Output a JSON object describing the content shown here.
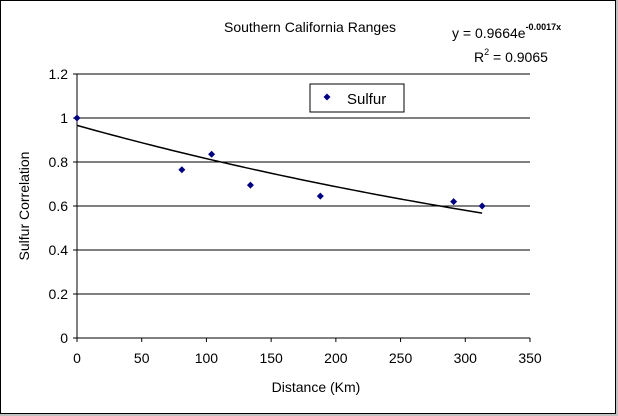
{
  "chart_data": {
    "type": "scatter",
    "title": "Southern California Ranges",
    "xlabel": "Distance (Km)",
    "ylabel": "Sulfur Correlation",
    "xlim": [
      0,
      350
    ],
    "ylim": [
      0,
      1.2
    ],
    "x_ticks": [
      "0",
      "50",
      "100",
      "150",
      "200",
      "250",
      "300",
      "350"
    ],
    "y_ticks": [
      "0",
      "0.2",
      "0.4",
      "0.6",
      "0.8",
      "1",
      "1.2"
    ],
    "grid": "horizontal",
    "legend": {
      "entries": [
        "Sulfur"
      ],
      "placement": "top-center"
    },
    "series": [
      {
        "name": "Sulfur",
        "color": "#000080",
        "marker": "diamond",
        "points": [
          {
            "x": 0,
            "y": 1.0
          },
          {
            "x": 81,
            "y": 0.765
          },
          {
            "x": 104,
            "y": 0.835
          },
          {
            "x": 134,
            "y": 0.695
          },
          {
            "x": 188,
            "y": 0.645
          },
          {
            "x": 291,
            "y": 0.62
          },
          {
            "x": 313,
            "y": 0.6
          }
        ]
      }
    ],
    "trendline": {
      "type": "exponential",
      "a": 0.9664,
      "b": -0.0017,
      "x_range": [
        0,
        313
      ],
      "equation_text": {
        "prefix": "y = 0.9664e",
        "exponent": "-0.0017x"
      },
      "r2_text": {
        "r": "R",
        "sup": "2",
        "value": " = 0.9065"
      }
    }
  }
}
